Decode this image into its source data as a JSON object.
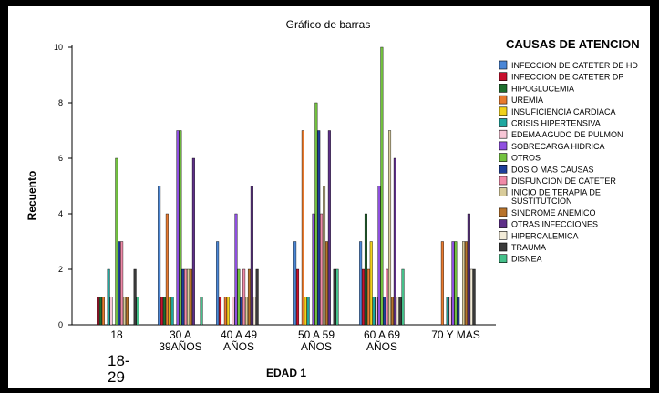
{
  "chart_data": {
    "type": "bar",
    "title": "Gráfico de barras",
    "xlabel": "EDAD 1",
    "ylabel": "Recuento",
    "ylim": [
      0,
      10
    ],
    "yticks": [
      0,
      2,
      4,
      6,
      8,
      10
    ],
    "grid": false,
    "legend_position": "right",
    "legend_title": "CAUSAS DE ATENCION",
    "categories": [
      "18-29",
      "30 A 39AÑOS",
      "40 A 49 AÑOS",
      "50 A 59 AÑOS",
      "60 A 69 AÑOS",
      "70 Y MAS"
    ],
    "category_tick_labels": [
      "18",
      "30 A\n39AÑOS",
      "40 A 49\nAÑOS",
      "50 A 59\nAÑOS",
      "60 A 69\nAÑOS",
      "70 Y MAS"
    ],
    "overlay_text": "18-\n29",
    "series": [
      {
        "name": "INFECCION DE CATETER DE HD",
        "color": "#4a86d6",
        "values": [
          null,
          5,
          3,
          3,
          3,
          null
        ]
      },
      {
        "name": "INFECCION DE CATETER DP",
        "color": "#c8102e",
        "values": [
          1,
          1,
          1,
          2,
          2,
          null
        ]
      },
      {
        "name": "HIPOGLUCEMIA",
        "color": "#1e6f2e",
        "values": [
          1,
          1,
          null,
          null,
          4,
          null
        ]
      },
      {
        "name": "UREMIA",
        "color": "#e87a2f",
        "values": [
          1,
          4,
          1,
          7,
          2,
          3
        ]
      },
      {
        "name": "INSUFICIENCIA CARDIACA",
        "color": "#f2d21b",
        "values": [
          null,
          1,
          1,
          1,
          3,
          null
        ]
      },
      {
        "name": "CRISIS HIPERTENSIVA",
        "color": "#1fa8a0",
        "values": [
          2,
          1,
          null,
          1,
          1,
          1
        ]
      },
      {
        "name": "EDEMA AGUDO DE PULMON",
        "color": "#f7c6d6",
        "values": [
          1,
          null,
          1,
          null,
          1,
          1
        ]
      },
      {
        "name": "SOBRECARGA HIDRICA",
        "color": "#8f4fe0",
        "values": [
          null,
          7,
          4,
          4,
          5,
          3
        ]
      },
      {
        "name": "OTROS",
        "color": "#73c23f",
        "values": [
          6,
          7,
          2,
          8,
          10,
          3
        ]
      },
      {
        "name": "DOS O MAS CAUSAS",
        "color": "#1e3f9a",
        "values": [
          3,
          2,
          1,
          7,
          1,
          1
        ]
      },
      {
        "name": "DISFUNCION DE CATETER",
        "color": "#f08aa8",
        "values": [
          3,
          2,
          2,
          4,
          2,
          null
        ]
      },
      {
        "name": "INICIO DE TERAPIA DE SUSTITUTCION",
        "color": "#d9cc9a",
        "values": [
          1,
          2,
          1,
          5,
          7,
          3
        ]
      },
      {
        "name": "SINDROME ANEMICO",
        "color": "#b8732a",
        "values": [
          1,
          2,
          2,
          3,
          1,
          3
        ]
      },
      {
        "name": "OTRAS INFECCIONES",
        "color": "#5e2f88",
        "values": [
          null,
          6,
          5,
          7,
          6,
          4
        ]
      },
      {
        "name": "HIPERCALEMICA",
        "color": "#f3ecd8",
        "values": [
          null,
          null,
          1,
          null,
          1,
          2
        ]
      },
      {
        "name": "TRAUMA",
        "color": "#3a3a3a",
        "values": [
          2,
          null,
          2,
          2,
          1,
          2
        ]
      },
      {
        "name": "DISNEA",
        "color": "#45c08a",
        "values": [
          1,
          1,
          null,
          2,
          2,
          null
        ]
      }
    ]
  }
}
